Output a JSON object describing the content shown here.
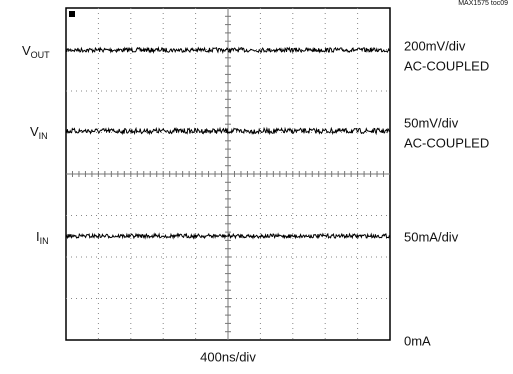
{
  "figure": {
    "id": "MAX1575 toc09",
    "channels": [
      {
        "name": "V",
        "sub": "OUT",
        "scale": "200mV/div",
        "coupling": "AC-COUPLED"
      },
      {
        "name": "V",
        "sub": "IN",
        "scale": "50mV/div",
        "coupling": "AC-COUPLED"
      },
      {
        "name": "I",
        "sub": "IN",
        "scale": "50mA/div"
      }
    ],
    "zero_label": "0mA",
    "time_scale": "400ns/div"
  }
}
